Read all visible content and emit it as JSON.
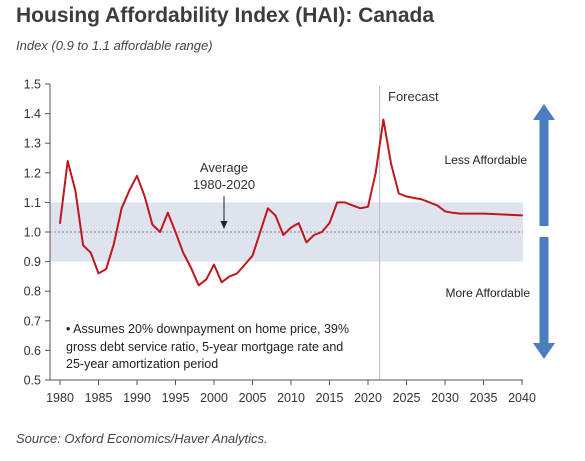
{
  "header": {
    "title": "Housing Affordability Index (HAI): Canada",
    "subtitle": "Index (0.9 to 1.1 affordable range)"
  },
  "footer": {
    "source": "Source: Oxford Economics/Haver Analytics."
  },
  "chart_data": {
    "type": "line",
    "title": "Housing Affordability Index (HAI): Canada",
    "subtitle": "Index (0.9 to 1.1 affordable range)",
    "xlabel": "",
    "ylabel": "",
    "xlim": [
      1980,
      2040
    ],
    "ylim": [
      0.5,
      1.5
    ],
    "x_ticks": [
      1980,
      1985,
      1990,
      1995,
      2000,
      2005,
      2010,
      2015,
      2020,
      2025,
      2030,
      2035,
      2040
    ],
    "y_ticks": [
      0.5,
      0.6,
      0.7,
      0.8,
      0.9,
      1.0,
      1.1,
      1.2,
      1.3,
      1.4,
      1.5
    ],
    "y_tick_labels": [
      "0.5",
      "0.6",
      "0.7",
      "0.8",
      "0.9",
      "1.0",
      "1.1",
      "1.2",
      "1.3",
      "1.4",
      "1.5"
    ],
    "grid": false,
    "affordable_band": [
      0.9,
      1.1
    ],
    "average_line": 1.0,
    "forecast_start": 2021.5,
    "series": [
      {
        "color": "#c0161d",
        "x": [
          1980,
          1981,
          1982,
          1983,
          1984,
          1985,
          1986,
          1987,
          1988,
          1989,
          1990,
          1991,
          1992,
          1993,
          1994,
          1995,
          1996,
          1997,
          1998,
          1999,
          2000,
          2001,
          2002,
          2003,
          2004,
          2005,
          2006,
          2007,
          2008,
          2009,
          2010,
          2011,
          2012,
          2013,
          2014,
          2015,
          2016,
          2017,
          2018,
          2019,
          2020,
          2021,
          2022,
          2023,
          2024,
          2025,
          2026,
          2027,
          2028,
          2029,
          2030,
          2031,
          2032,
          2035,
          2040
        ],
        "values": [
          1.03,
          1.24,
          1.14,
          0.955,
          0.93,
          0.86,
          0.875,
          0.96,
          1.08,
          1.14,
          1.19,
          1.12,
          1.025,
          1.0,
          1.065,
          1.0,
          0.93,
          0.88,
          0.82,
          0.84,
          0.89,
          0.83,
          0.85,
          0.86,
          0.89,
          0.92,
          1.0,
          1.08,
          1.055,
          0.99,
          1.015,
          1.03,
          0.965,
          0.99,
          1.0,
          1.03,
          1.1,
          1.1,
          1.09,
          1.08,
          1.085,
          1.2,
          1.38,
          1.23,
          1.13,
          1.12,
          1.115,
          1.11,
          1.1,
          1.09,
          1.07,
          1.065,
          1.062,
          1.062,
          1.056
        ]
      }
    ],
    "annotations": {
      "average_line1": "Average",
      "average_line2": "1980-2020",
      "forecast": "Forecast",
      "less_affordable": "Less Affordable",
      "more_affordable": "More Affordable",
      "assumptions": [
        "• Assumes 20% downpayment on home price, 39%",
        "gross debt service ratio, 5-year mortgage rate and",
        "25-year amortization period"
      ]
    },
    "colors": {
      "band": "#dfe3ee",
      "line": "#c0161d",
      "arrow": "#4a7ebf",
      "forecast_divider": "#bfbfbf",
      "average_dotted": "#808080"
    }
  }
}
